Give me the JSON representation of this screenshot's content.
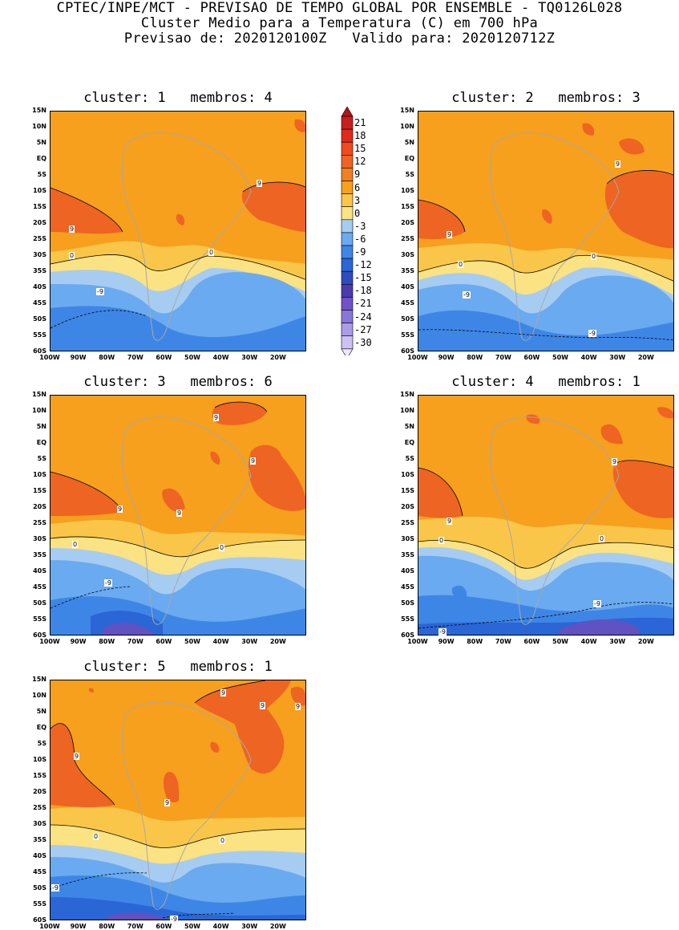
{
  "header": {
    "line1": "CPTEC/INPE/MCT - PREVISAO DE TEMPO GLOBAL POR ENSEMBLE - TQ0126L028",
    "line2": "Cluster Medio para a Temperatura (C) em 700 hPa",
    "line3": "Previsao de: 2020120100Z   Valido para: 2020120712Z"
  },
  "axes": {
    "lat_labels": [
      "15N",
      "10N",
      "5N",
      "EQ",
      "5S",
      "10S",
      "15S",
      "20S",
      "25S",
      "30S",
      "35S",
      "40S",
      "45S",
      "50S",
      "55S",
      "60S"
    ],
    "lon_labels": [
      "100W",
      "90W",
      "80W",
      "70W",
      "60W",
      "50W",
      "40W",
      "30W",
      "20W"
    ]
  },
  "legend": {
    "levels": [
      "21",
      "18",
      "15",
      "12",
      "9",
      "6",
      "3",
      "0",
      "-3",
      "-6",
      "-9",
      "-12",
      "-15",
      "-18",
      "-21",
      "-24",
      "-27",
      "-30"
    ],
    "colors": [
      "#c81e1e",
      "#e02a1a",
      "#f04a1e",
      "#ee6422",
      "#f08022",
      "#f6a01e",
      "#fac64a",
      "#fbe282",
      "#a6ccf2",
      "#6aaaf0",
      "#3e86e6",
      "#2a66d6",
      "#2e4cbe",
      "#4a3cae",
      "#7252c8",
      "#8a76da",
      "#ac9ce6",
      "#ccc2f2"
    ],
    "top_color": "#b41414",
    "bottom_color": "#ece8f8"
  },
  "panels": [
    {
      "title": "cluster: 1   membros: 4",
      "labels": [
        "9",
        "9",
        "0",
        "0",
        "-9"
      ]
    },
    {
      "title": "cluster: 2   membros: 3",
      "labels": [
        "9",
        "9",
        "0",
        "0",
        "-9",
        "-9"
      ]
    },
    {
      "title": "cluster: 3   membros: 6",
      "labels": [
        "9",
        "9",
        "9",
        "9",
        "0",
        "0",
        "-9"
      ]
    },
    {
      "title": "cluster: 4   membros: 1",
      "labels": [
        "9",
        "9",
        "0",
        "0",
        "-9",
        "-9"
      ]
    },
    {
      "title": "cluster: 5   membros: 1",
      "labels": [
        "9",
        "9",
        "9",
        "9",
        "9",
        "0",
        "0",
        "-9",
        "-9"
      ]
    }
  ]
}
